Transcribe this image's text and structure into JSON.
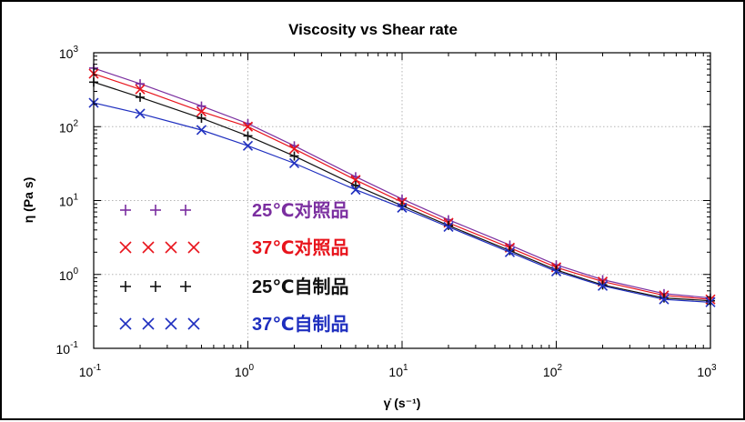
{
  "chart_data": {
    "type": "scatter",
    "title": "Viscosity vs Shear rate",
    "xlabel": "γ̇ (s⁻¹)",
    "ylabel": "η (Pa s)",
    "xscale": "log",
    "yscale": "log",
    "xlim": [
      0.1,
      1000
    ],
    "ylim": [
      0.1,
      1000
    ],
    "grid": true,
    "legend_position": "left",
    "x_ticks": [
      {
        "base": "10",
        "exp": "-1",
        "value": 0.1
      },
      {
        "base": "10",
        "exp": "0",
        "value": 1
      },
      {
        "base": "10",
        "exp": "1",
        "value": 10
      },
      {
        "base": "10",
        "exp": "2",
        "value": 100
      },
      {
        "base": "10",
        "exp": "3",
        "value": 1000
      }
    ],
    "y_ticks": [
      {
        "base": "10",
        "exp": "-1",
        "value": 0.1
      },
      {
        "base": "10",
        "exp": "0",
        "value": 1
      },
      {
        "base": "10",
        "exp": "1",
        "value": 10
      },
      {
        "base": "10",
        "exp": "2",
        "value": 100
      },
      {
        "base": "10",
        "exp": "3",
        "value": 1000
      }
    ],
    "series": [
      {
        "name": "25℃对照品",
        "color": "#7b2fa0",
        "marker": "plus",
        "x": [
          0.1,
          0.2,
          0.5,
          1,
          2,
          5,
          10,
          20,
          50,
          100,
          200,
          500,
          1000
        ],
        "y": [
          620,
          380,
          190,
          110,
          55,
          21,
          10.5,
          5.5,
          2.5,
          1.35,
          0.85,
          0.55,
          0.48
        ]
      },
      {
        "name": "37℃对照品",
        "color": "#e8141c",
        "marker": "x",
        "x": [
          0.1,
          0.2,
          0.5,
          1,
          2,
          5,
          10,
          20,
          50,
          100,
          200,
          500,
          1000
        ],
        "y": [
          520,
          320,
          160,
          100,
          50,
          19,
          9.5,
          5.0,
          2.3,
          1.25,
          0.8,
          0.52,
          0.46
        ]
      },
      {
        "name": "25℃自制品",
        "color": "#111111",
        "marker": "plus",
        "x": [
          0.1,
          0.2,
          0.5,
          1,
          2,
          5,
          10,
          20,
          50,
          100,
          200,
          500,
          1000
        ],
        "y": [
          400,
          250,
          130,
          75,
          40,
          16,
          8.5,
          4.6,
          2.1,
          1.15,
          0.72,
          0.48,
          0.44
        ]
      },
      {
        "name": "37℃自制品",
        "color": "#1f2fbf",
        "marker": "x",
        "x": [
          0.1,
          0.2,
          0.5,
          1,
          2,
          5,
          10,
          20,
          50,
          100,
          200,
          500,
          1000
        ],
        "y": [
          210,
          150,
          90,
          55,
          32,
          14,
          8,
          4.4,
          2.0,
          1.1,
          0.7,
          0.46,
          0.42
        ]
      }
    ]
  }
}
